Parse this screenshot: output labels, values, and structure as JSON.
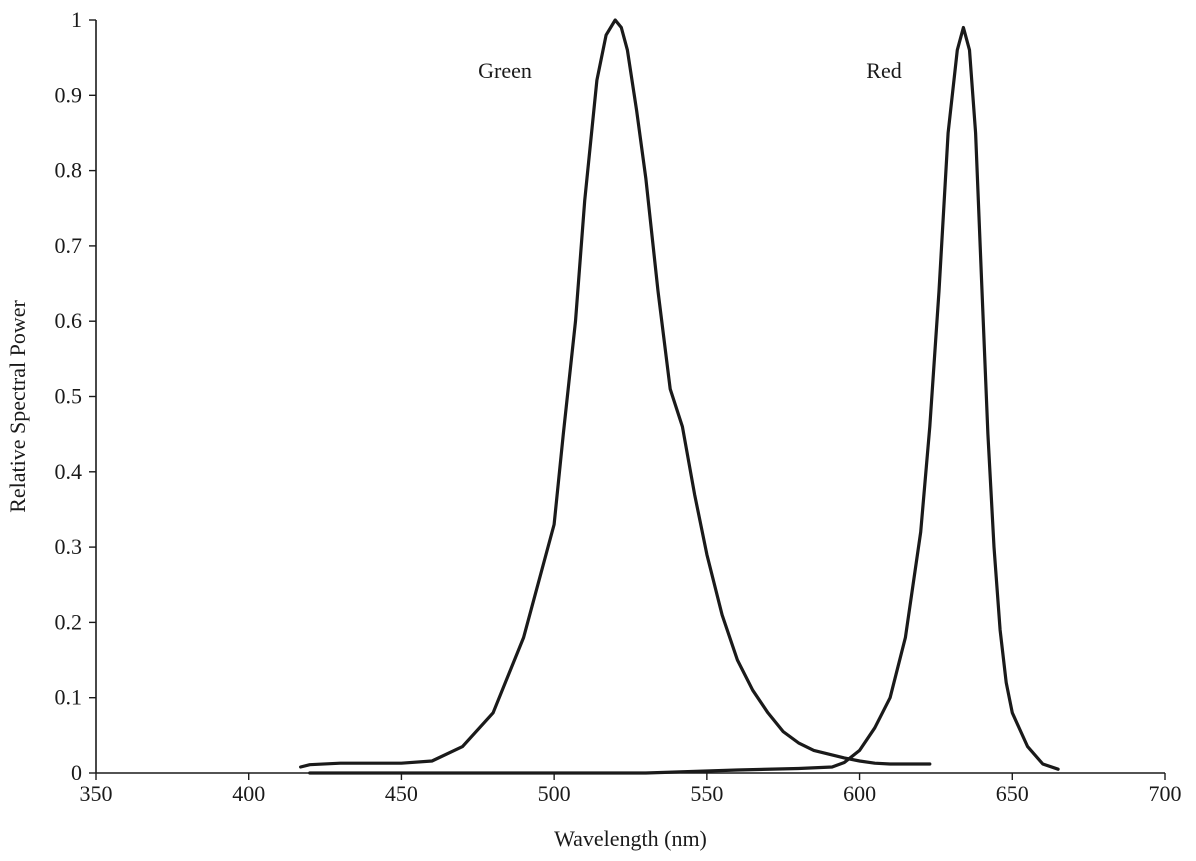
{
  "chart_data": {
    "type": "line",
    "title": "",
    "xlabel": "Wavelength (nm)",
    "ylabel": "Relative Spectral Power",
    "xlim": [
      350,
      700
    ],
    "ylim": [
      0,
      1
    ],
    "x_ticks": [
      350,
      400,
      450,
      500,
      550,
      600,
      650,
      700
    ],
    "y_ticks": [
      0,
      0.1,
      0.2,
      0.3,
      0.4,
      0.5,
      0.6,
      0.7,
      0.8,
      0.9,
      1
    ],
    "grid": false,
    "legend": "none",
    "line_color": "#1a1a1a",
    "series": [
      {
        "name": "Green",
        "x": [
          417,
          420,
          430,
          440,
          450,
          460,
          470,
          480,
          490,
          500,
          503,
          507,
          510,
          514,
          517,
          520,
          522,
          524,
          527,
          530,
          534,
          538,
          542,
          546,
          550,
          555,
          560,
          565,
          570,
          575,
          580,
          585,
          590,
          595,
          600,
          605,
          610,
          615,
          620,
          623
        ],
        "y": [
          0.008,
          0.011,
          0.013,
          0.013,
          0.013,
          0.016,
          0.035,
          0.08,
          0.18,
          0.33,
          0.45,
          0.6,
          0.76,
          0.92,
          0.98,
          1.0,
          0.99,
          0.96,
          0.88,
          0.79,
          0.64,
          0.51,
          0.46,
          0.37,
          0.29,
          0.21,
          0.15,
          0.11,
          0.08,
          0.055,
          0.04,
          0.03,
          0.025,
          0.02,
          0.016,
          0.013,
          0.012,
          0.012,
          0.012,
          0.012
        ]
      },
      {
        "name": "Red",
        "x": [
          420,
          450,
          480,
          500,
          520,
          530,
          560,
          580,
          591,
          595,
          600,
          605,
          610,
          615,
          620,
          623,
          626,
          629,
          632,
          634,
          636,
          638,
          640,
          642,
          644,
          646,
          648,
          650,
          655,
          660,
          665
        ],
        "y": [
          0.0,
          0.0,
          0.0,
          0.0,
          0.0,
          0.0,
          0.004,
          0.006,
          0.008,
          0.014,
          0.03,
          0.06,
          0.1,
          0.18,
          0.32,
          0.46,
          0.64,
          0.85,
          0.96,
          0.99,
          0.96,
          0.85,
          0.65,
          0.45,
          0.3,
          0.19,
          0.12,
          0.08,
          0.035,
          0.012,
          0.005
        ]
      }
    ]
  }
}
